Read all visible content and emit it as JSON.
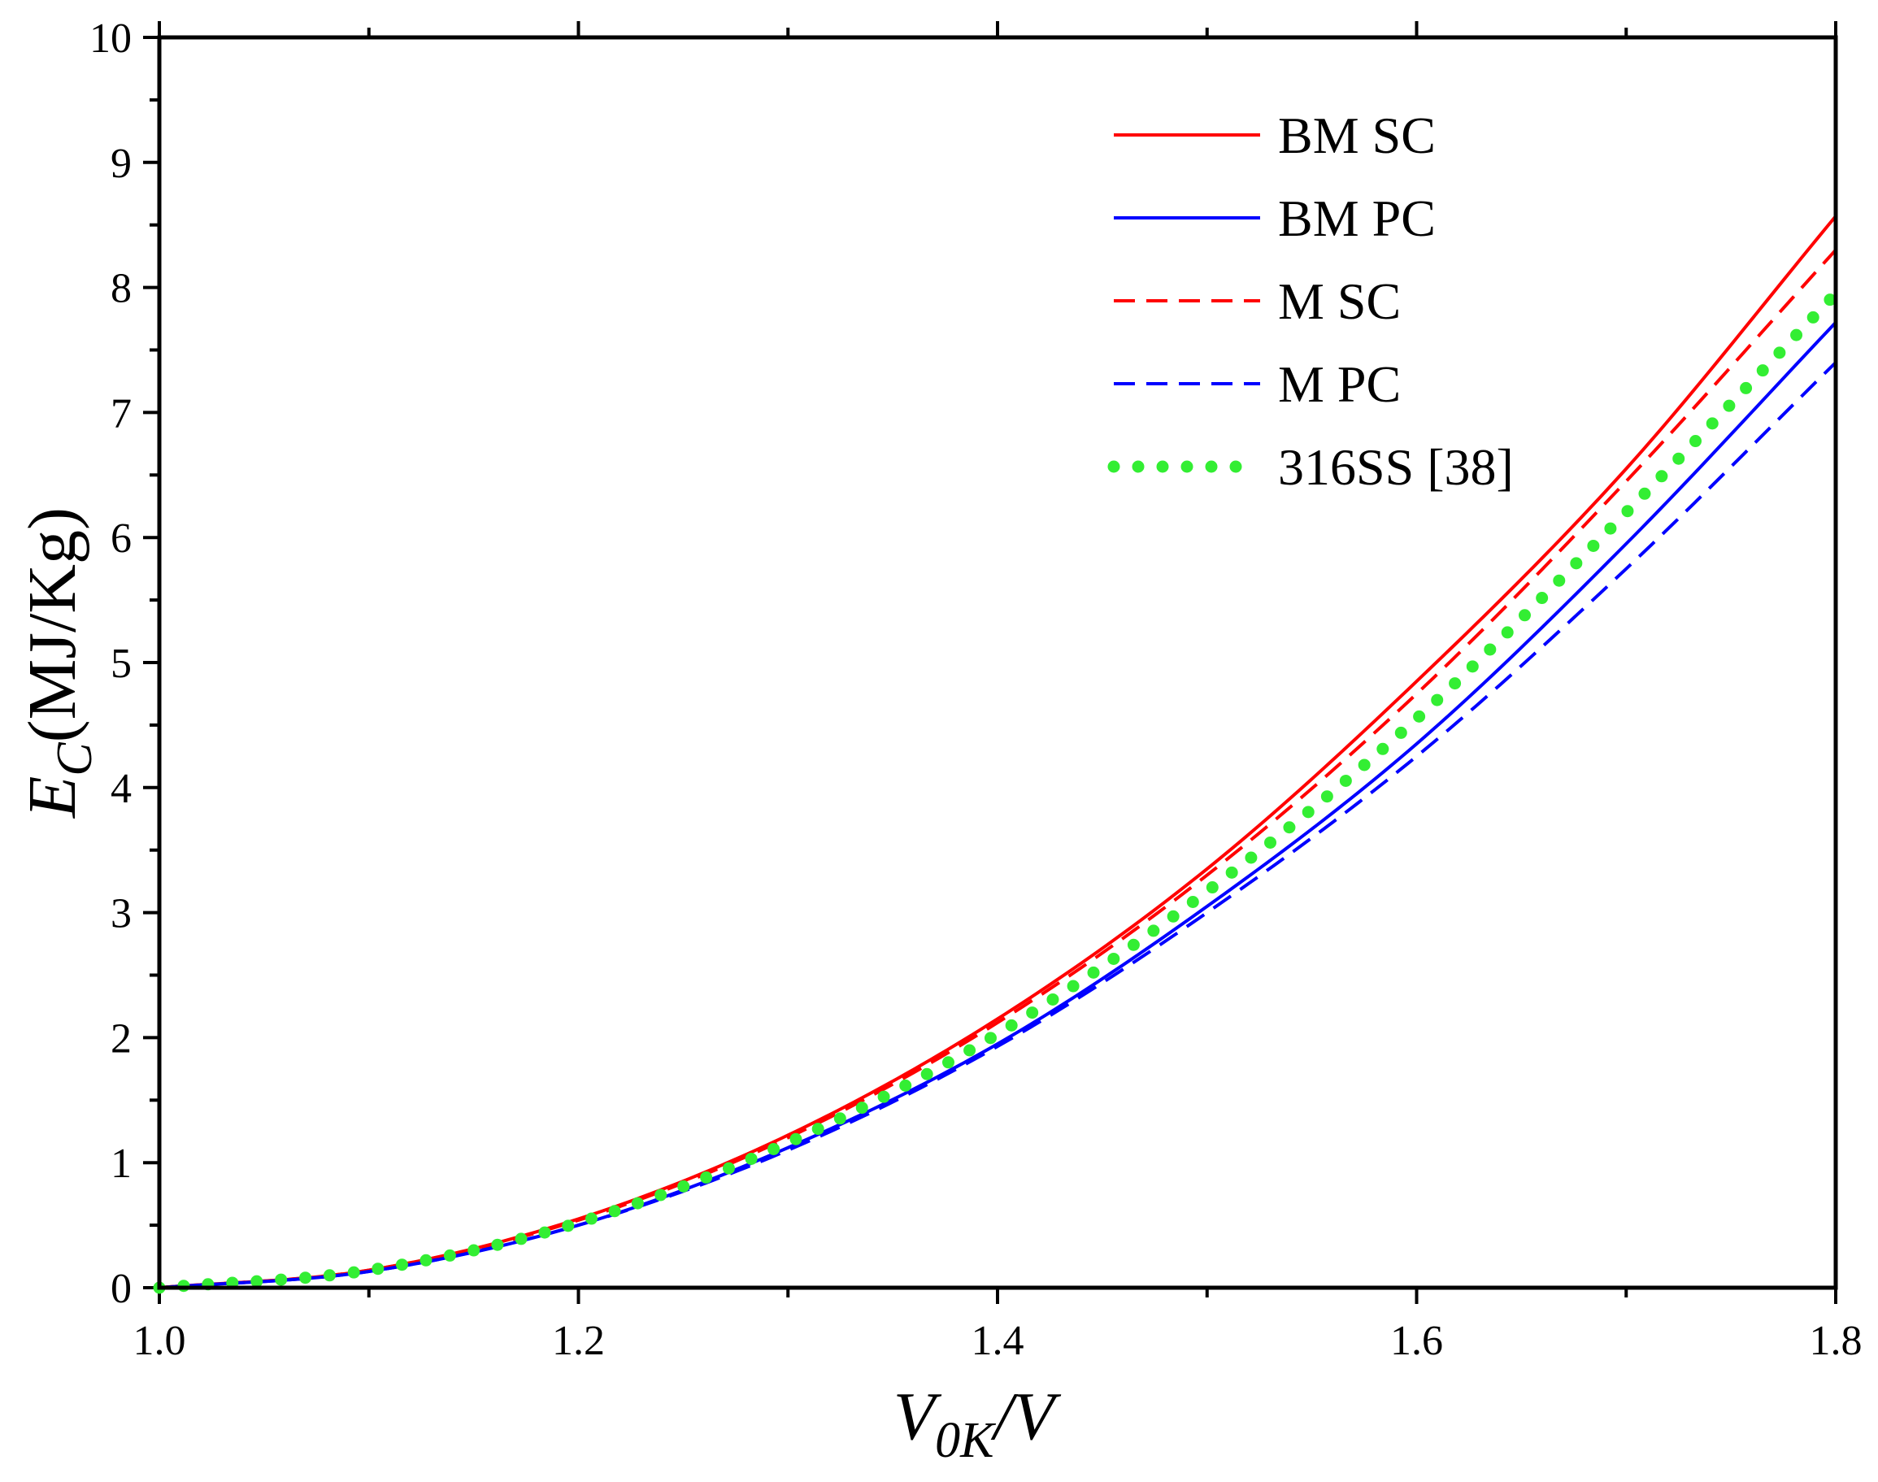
{
  "chart_data": {
    "type": "line",
    "title": "",
    "xlabel": {
      "main": "V",
      "sub": "0K",
      "rest": "/V"
    },
    "ylabel": {
      "main": "E",
      "sub": "C",
      "rest": "(MJ/Kg)"
    },
    "xlim": [
      1.0,
      1.8
    ],
    "ylim": [
      0,
      10
    ],
    "x_ticks": [
      "1.0",
      "1.2",
      "1.4",
      "1.6",
      "1.8"
    ],
    "y_ticks": [
      "0",
      "1",
      "2",
      "3",
      "4",
      "5",
      "6",
      "7",
      "8",
      "9",
      "10"
    ],
    "legend_position": "top-right",
    "x": [
      1.0,
      1.1,
      1.2,
      1.3,
      1.4,
      1.5,
      1.6,
      1.7,
      1.8
    ],
    "series": [
      {
        "name": "BM SC",
        "color": "#ff0000",
        "dash": "solid",
        "values": [
          0.0,
          0.14,
          0.55,
          1.22,
          2.15,
          3.35,
          4.85,
          6.55,
          8.57
        ]
      },
      {
        "name": "BM PC",
        "color": "#0000ff",
        "dash": "solid",
        "values": [
          0.0,
          0.13,
          0.5,
          1.12,
          1.95,
          3.05,
          4.35,
          5.95,
          7.72
        ]
      },
      {
        "name": "M SC",
        "color": "#ff0000",
        "dash": "dashed",
        "values": [
          0.0,
          0.14,
          0.54,
          1.2,
          2.12,
          3.3,
          4.75,
          6.45,
          8.3
        ]
      },
      {
        "name": "M PC",
        "color": "#0000ff",
        "dash": "dashed",
        "values": [
          0.0,
          0.13,
          0.5,
          1.1,
          1.93,
          3.0,
          4.25,
          5.75,
          7.4
        ]
      },
      {
        "name": "316SS [38]",
        "color": "#33ee33",
        "dash": "dotted",
        "values": [
          0.0,
          0.14,
          0.52,
          1.16,
          2.03,
          3.17,
          4.55,
          6.2,
          7.95
        ]
      }
    ]
  }
}
